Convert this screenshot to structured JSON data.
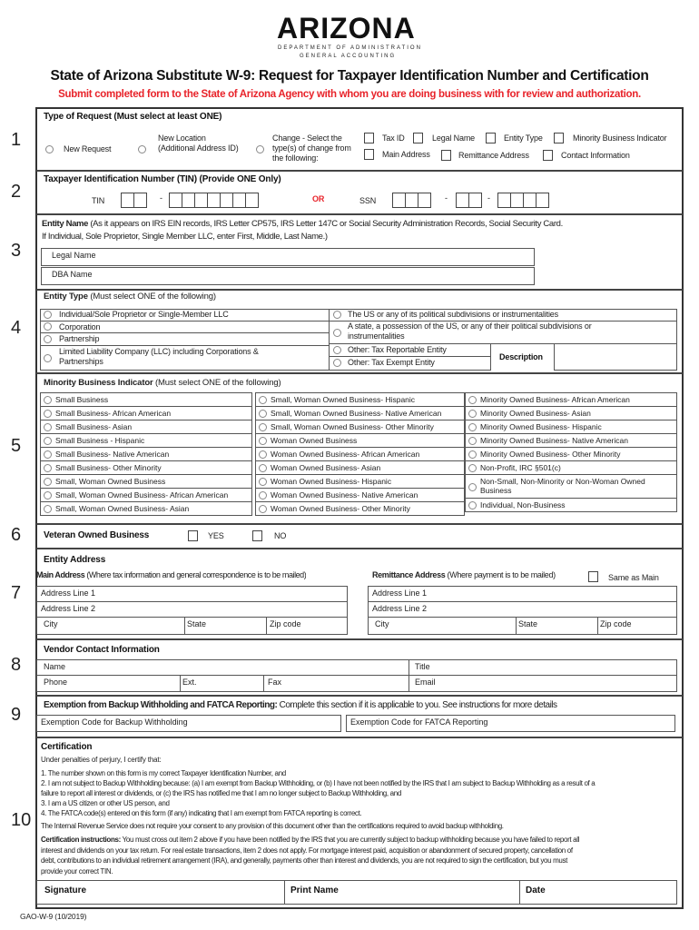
{
  "logo": {
    "name": "ARIZONA",
    "dept": "DEPARTMENT OF ADMINISTRATION",
    "sub": "GENERAL ACCOUNTING"
  },
  "title": "State of Arizona Substitute W-9: Request for Taxpayer Identification Number and Certification",
  "subtitle": "Submit completed form to the State of Arizona Agency with whom you are doing business with for review and authorization.",
  "colors": {
    "accent": "#e8232a",
    "border": "#444444"
  },
  "sections": {
    "s1": {
      "num": "1",
      "heading": "Type of Request  (Must select at least ONE)",
      "radios": [
        "New Request",
        "New Location (Additional Address ID)",
        "Change - Select the type(s) of change from the following:"
      ],
      "checks": [
        "Tax ID",
        "Legal Name",
        "Entity Type",
        "Minority Business Indicator",
        "Main Address",
        "Remittance Address",
        "Contact Information"
      ]
    },
    "s2": {
      "num": "2",
      "heading": "Taxpayer Identification Number (TIN)  (Provide ONE Only)",
      "tin": "TIN",
      "or": "OR",
      "ssn": "SSN",
      "dash": "-"
    },
    "s3": {
      "num": "3",
      "heading_bold": "Entity Name",
      "heading": " (As it appears on IRS EIN records, IRS Letter CP575, IRS Letter 147C or Social Security Administration Records, Social Security Card.",
      "heading2": "If Individual, Sole Proprietor, Single Member LLC, enter First, Middle, Last Name.)",
      "legal": "Legal Name",
      "dba": "DBA Name"
    },
    "s4": {
      "num": "4",
      "heading_bold": "Entity Type",
      "heading": " (Must select ONE of the following)",
      "left": [
        "Individual/Sole Proprietor  or Single-Member LLC",
        "Corporation",
        "Partnership",
        "Limited Liability Company (LLC) including Corporations & Partnerships"
      ],
      "right": [
        "The US or any of its political subdivisions or instrumentalities",
        "A state, a possession of the US, or any of their political subdivisions or instrumentalities",
        "Other: Tax Reportable Entity",
        "Other:  Tax Exempt Entity"
      ],
      "description": "Description"
    },
    "s5": {
      "num": "5",
      "heading_bold": "Minority Business Indicator",
      "heading": " (Must select ONE of the following)",
      "columns": [
        [
          "Small Business",
          "Small Business- African American",
          "Small Business- Asian",
          "Small Business - Hispanic",
          "Small Business- Native American",
          "Small Business- Other Minority",
          "Small, Woman Owned Business",
          "Small, Woman Owned Business- African American",
          "Small, Woman Owned Business- Asian"
        ],
        [
          "Small, Woman Owned Business- Hispanic",
          "Small, Woman Owned Business- Native American",
          "Small, Woman Owned Business- Other Minority",
          "Woman Owned Business",
          "Woman Owned Business- African American",
          "Woman Owned Business- Asian",
          "Woman Owned Business- Hispanic",
          "Woman Owned Business- Native American",
          "Woman Owned Business- Other Minority"
        ],
        [
          "Minority Owned Business- African American",
          "Minority Owned Business- Asian",
          "Minority Owned Business- Hispanic",
          "Minority Owned Business- Native American",
          "Minority Owned Business- Other Minority",
          "Non-Profit, IRC  §501(c)",
          "Non-Small, Non-Minority or Non-Woman Owned Business",
          "Individual, Non-Business"
        ]
      ]
    },
    "s6": {
      "num": "6",
      "heading": "Veteran Owned Business",
      "yes": "YES",
      "no": "NO"
    },
    "s7": {
      "num": "7",
      "heading": "Entity Address",
      "main_bold": "Main Address",
      "main": " (Where tax information and general correspondence  is to be mailed)",
      "remit_bold": "Remittance Address",
      "remit": " (Where payment is to be mailed)",
      "same": "Same as Main",
      "addr1": "Address Line 1",
      "addr2": "Address Line 2",
      "city": "City",
      "state": "State",
      "zip": "Zip code"
    },
    "s8": {
      "num": "8",
      "heading": "Vendor Contact Information",
      "name": "Name",
      "title": "Title",
      "phone": "Phone",
      "ext": "Ext.",
      "fax": "Fax",
      "email": "Email"
    },
    "s9": {
      "num": "9",
      "heading_bold": "Exemption from Backup Withholding and FATCA Reporting:",
      "heading": "  Complete this section if it is applicable to you.  See instructions for  more details",
      "backup": "Exemption Code for Backup Withholding",
      "fatca": "Exemption Code for FATCA Reporting"
    },
    "s10": {
      "num": "10",
      "heading": "Certification",
      "intro": "Under penalties of perjury, I certify that:",
      "items": [
        "1. The number shown on this form is my correct Taxpayer Identification Number, and",
        "2. I am not subject to Backup Withholding because: (a) I am exempt from Backup Withholding, or (b) I have not been notified by the IRS that I am subject to Backup Withholding as a result of a",
        "failure to report all interest or dividends, or (c) the IRS has notified me that I am no longer subject to Backup Withholding, and",
        "3. I am a US citizen or other US person, and",
        "4. The FATCA code(s) entered on this form (if any) indicating that I am exempt from FATCA reporting is correct."
      ],
      "irs": "The Internal Revenue Service does not require your consent to any provision of this document other than the certifications required to avoid backup withholding.",
      "instr_bold": "Certification instructions:",
      "instr": [
        " You must cross out item 2 above if you have been notified by the IRS that you are currently subject to backup withholding because you have failed to report all",
        "interest and dividends on your tax return. For real estate transactions, item 2 does not apply. For mortgage interest paid, acquisition or abandonment of secured property, cancellation of",
        "debt, contributions to an individual retirement arrangement (IRA), and generally, payments other than interest and dividends, you are not required to sign the certification, but you must",
        "provide your correct TIN."
      ],
      "signature": "Signature",
      "print_name": "Print Name",
      "date": "Date"
    }
  },
  "footer": "GAO-W-9 (10/2019)"
}
